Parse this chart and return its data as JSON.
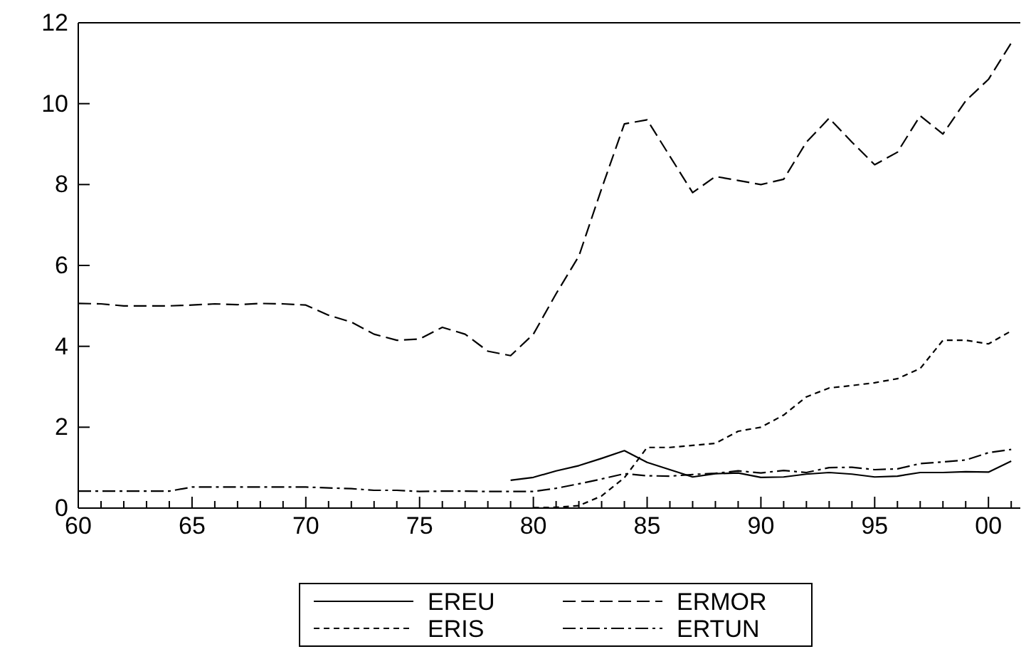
{
  "chart_data": {
    "type": "line",
    "xlim": [
      1960,
      2001.4
    ],
    "xticks": [
      {
        "value": 1960,
        "label": "60"
      },
      {
        "value": 1961,
        "label": null
      },
      {
        "value": 1962,
        "label": null
      },
      {
        "value": 1963,
        "label": null
      },
      {
        "value": 1964,
        "label": null
      },
      {
        "value": 1965,
        "label": "65"
      },
      {
        "value": 1966,
        "label": null
      },
      {
        "value": 1967,
        "label": null
      },
      {
        "value": 1968,
        "label": null
      },
      {
        "value": 1969,
        "label": null
      },
      {
        "value": 1970,
        "label": "70"
      },
      {
        "value": 1971,
        "label": null
      },
      {
        "value": 1972,
        "label": null
      },
      {
        "value": 1973,
        "label": null
      },
      {
        "value": 1974,
        "label": null
      },
      {
        "value": 1975,
        "label": "75"
      },
      {
        "value": 1976,
        "label": null
      },
      {
        "value": 1977,
        "label": null
      },
      {
        "value": 1978,
        "label": null
      },
      {
        "value": 1979,
        "label": null
      },
      {
        "value": 1980,
        "label": "80"
      },
      {
        "value": 1981,
        "label": null
      },
      {
        "value": 1982,
        "label": null
      },
      {
        "value": 1983,
        "label": null
      },
      {
        "value": 1984,
        "label": null
      },
      {
        "value": 1985,
        "label": "85"
      },
      {
        "value": 1986,
        "label": null
      },
      {
        "value": 1987,
        "label": null
      },
      {
        "value": 1988,
        "label": null
      },
      {
        "value": 1989,
        "label": null
      },
      {
        "value": 1990,
        "label": "90"
      },
      {
        "value": 1991,
        "label": null
      },
      {
        "value": 1992,
        "label": null
      },
      {
        "value": 1993,
        "label": null
      },
      {
        "value": 1994,
        "label": null
      },
      {
        "value": 1995,
        "label": "95"
      },
      {
        "value": 1996,
        "label": null
      },
      {
        "value": 1997,
        "label": null
      },
      {
        "value": 1998,
        "label": null
      },
      {
        "value": 1999,
        "label": null
      },
      {
        "value": 2000,
        "label": "00"
      },
      {
        "value": 2001,
        "label": null
      }
    ],
    "ylim": [
      0,
      12
    ],
    "yticks": [
      0,
      2,
      4,
      6,
      8,
      10,
      12
    ],
    "grid": false,
    "legend": "bottom",
    "series": [
      {
        "name": "EREU",
        "color": "#000000",
        "line_style": "solid",
        "x": [
          1979,
          1980,
          1981,
          1982,
          1983,
          1984,
          1985,
          1986,
          1987,
          1988,
          1989,
          1990,
          1991,
          1992,
          1993,
          1994,
          1995,
          1996,
          1997,
          1998,
          1999,
          2000,
          2001
        ],
        "values": [
          0.69,
          0.76,
          0.92,
          1.05,
          1.23,
          1.42,
          1.13,
          0.95,
          0.77,
          0.85,
          0.87,
          0.76,
          0.77,
          0.84,
          0.88,
          0.84,
          0.77,
          0.79,
          0.88,
          0.88,
          0.9,
          0.89,
          1.16
        ]
      },
      {
        "name": "ERMOR",
        "color": "#000000",
        "line_style": "dashed",
        "x": [
          1960,
          1961,
          1962,
          1963,
          1964,
          1965,
          1966,
          1967,
          1968,
          1969,
          1970,
          1971,
          1972,
          1973,
          1974,
          1975,
          1976,
          1977,
          1978,
          1979,
          1980,
          1981,
          1982,
          1983,
          1984,
          1985,
          1986,
          1987,
          1988,
          1989,
          1990,
          1991,
          1992,
          1993,
          1994,
          1995,
          1996,
          1997,
          1998,
          1999,
          2000,
          2001
        ],
        "values": [
          5.06,
          5.05,
          5.0,
          5.0,
          5.0,
          5.02,
          5.05,
          5.03,
          5.06,
          5.05,
          5.02,
          4.77,
          4.6,
          4.3,
          4.15,
          4.18,
          4.47,
          4.3,
          3.88,
          3.77,
          4.3,
          5.3,
          6.23,
          7.9,
          9.5,
          9.6,
          8.7,
          7.8,
          8.2,
          8.1,
          8.0,
          8.13,
          9.05,
          9.64,
          9.05,
          8.49,
          8.8,
          9.7,
          9.25,
          10.07,
          10.6,
          11.5
        ]
      },
      {
        "name": "ERIS",
        "color": "#000000",
        "line_style": "dotted",
        "x": [
          1980,
          1981,
          1982,
          1983,
          1984,
          1985,
          1986,
          1987,
          1988,
          1989,
          1990,
          1991,
          1992,
          1993,
          1994,
          1995,
          1996,
          1997,
          1998,
          1999,
          2000,
          2001
        ],
        "values": [
          0.01,
          0.02,
          0.06,
          0.3,
          0.75,
          1.5,
          1.5,
          1.55,
          1.6,
          1.9,
          2.0,
          2.3,
          2.75,
          2.97,
          3.03,
          3.1,
          3.2,
          3.45,
          4.15,
          4.15,
          4.06,
          4.38
        ]
      },
      {
        "name": "ERTUN",
        "color": "#000000",
        "line_style": "dashdot",
        "x": [
          1960,
          1961,
          1962,
          1963,
          1964,
          1965,
          1966,
          1967,
          1968,
          1969,
          1970,
          1971,
          1972,
          1973,
          1974,
          1975,
          1976,
          1977,
          1978,
          1979,
          1980,
          1981,
          1982,
          1983,
          1984,
          1985,
          1986,
          1987,
          1988,
          1989,
          1990,
          1991,
          1992,
          1993,
          1994,
          1995,
          1996,
          1997,
          1998,
          1999,
          2000,
          2001
        ],
        "values": [
          0.42,
          0.42,
          0.42,
          0.42,
          0.42,
          0.52,
          0.52,
          0.52,
          0.52,
          0.52,
          0.52,
          0.5,
          0.48,
          0.44,
          0.44,
          0.41,
          0.42,
          0.42,
          0.41,
          0.41,
          0.41,
          0.49,
          0.6,
          0.72,
          0.85,
          0.8,
          0.79,
          0.83,
          0.86,
          0.92,
          0.87,
          0.93,
          0.88,
          1.0,
          1.01,
          0.95,
          0.97,
          1.1,
          1.14,
          1.19,
          1.37,
          1.45
        ]
      }
    ]
  }
}
